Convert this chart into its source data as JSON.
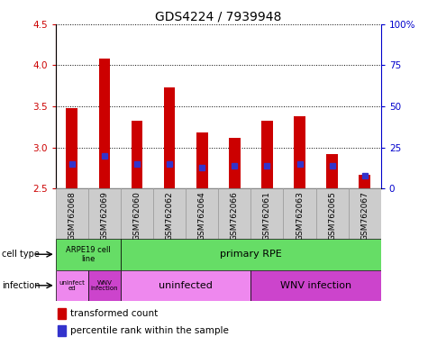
{
  "title": "GDS4224 / 7939948",
  "samples": [
    "GSM762068",
    "GSM762069",
    "GSM762060",
    "GSM762062",
    "GSM762064",
    "GSM762066",
    "GSM762061",
    "GSM762063",
    "GSM762065",
    "GSM762067"
  ],
  "transformed_count": [
    3.48,
    4.08,
    3.32,
    3.73,
    3.18,
    3.12,
    3.33,
    3.38,
    2.92,
    2.67
  ],
  "percentile_rank": [
    15,
    20,
    15,
    15,
    13,
    14,
    14,
    15,
    14,
    8
  ],
  "ylim_left": [
    2.5,
    4.5
  ],
  "ylim_right": [
    0,
    100
  ],
  "yticks_left": [
    2.5,
    3.0,
    3.5,
    4.0,
    4.5
  ],
  "yticks_right": [
    0,
    25,
    50,
    75,
    100
  ],
  "ytick_labels_right": [
    "0",
    "25",
    "50",
    "75",
    "100%"
  ],
  "bar_color": "#cc0000",
  "dot_color": "#3333cc",
  "bar_bottom": 2.5,
  "left_axis_color": "#cc0000",
  "right_axis_color": "#0000cc",
  "bar_width": 0.35,
  "dot_size": 4,
  "cell_type_arpe_color": "#66dd66",
  "cell_type_rpe_color": "#66dd66",
  "inf_uninfected_color": "#ee88ee",
  "inf_wnv_color": "#cc44cc",
  "sample_bg_color": "#cccccc",
  "plot_bg_color": "#ffffff",
  "legend_red_label": "transformed count",
  "legend_blue_label": "percentile rank within the sample",
  "cell_type_label": "cell type",
  "infection_label": "infection",
  "arpe_text": "ARPE19 cell\nline",
  "rpe_text": "primary RPE",
  "inf_uninfected_text1": "uninfect\ned",
  "inf_wnv_text1": "WNV\ninfection",
  "inf_uninfected_text2": "uninfected",
  "inf_wnv_text2": "WNV infection"
}
